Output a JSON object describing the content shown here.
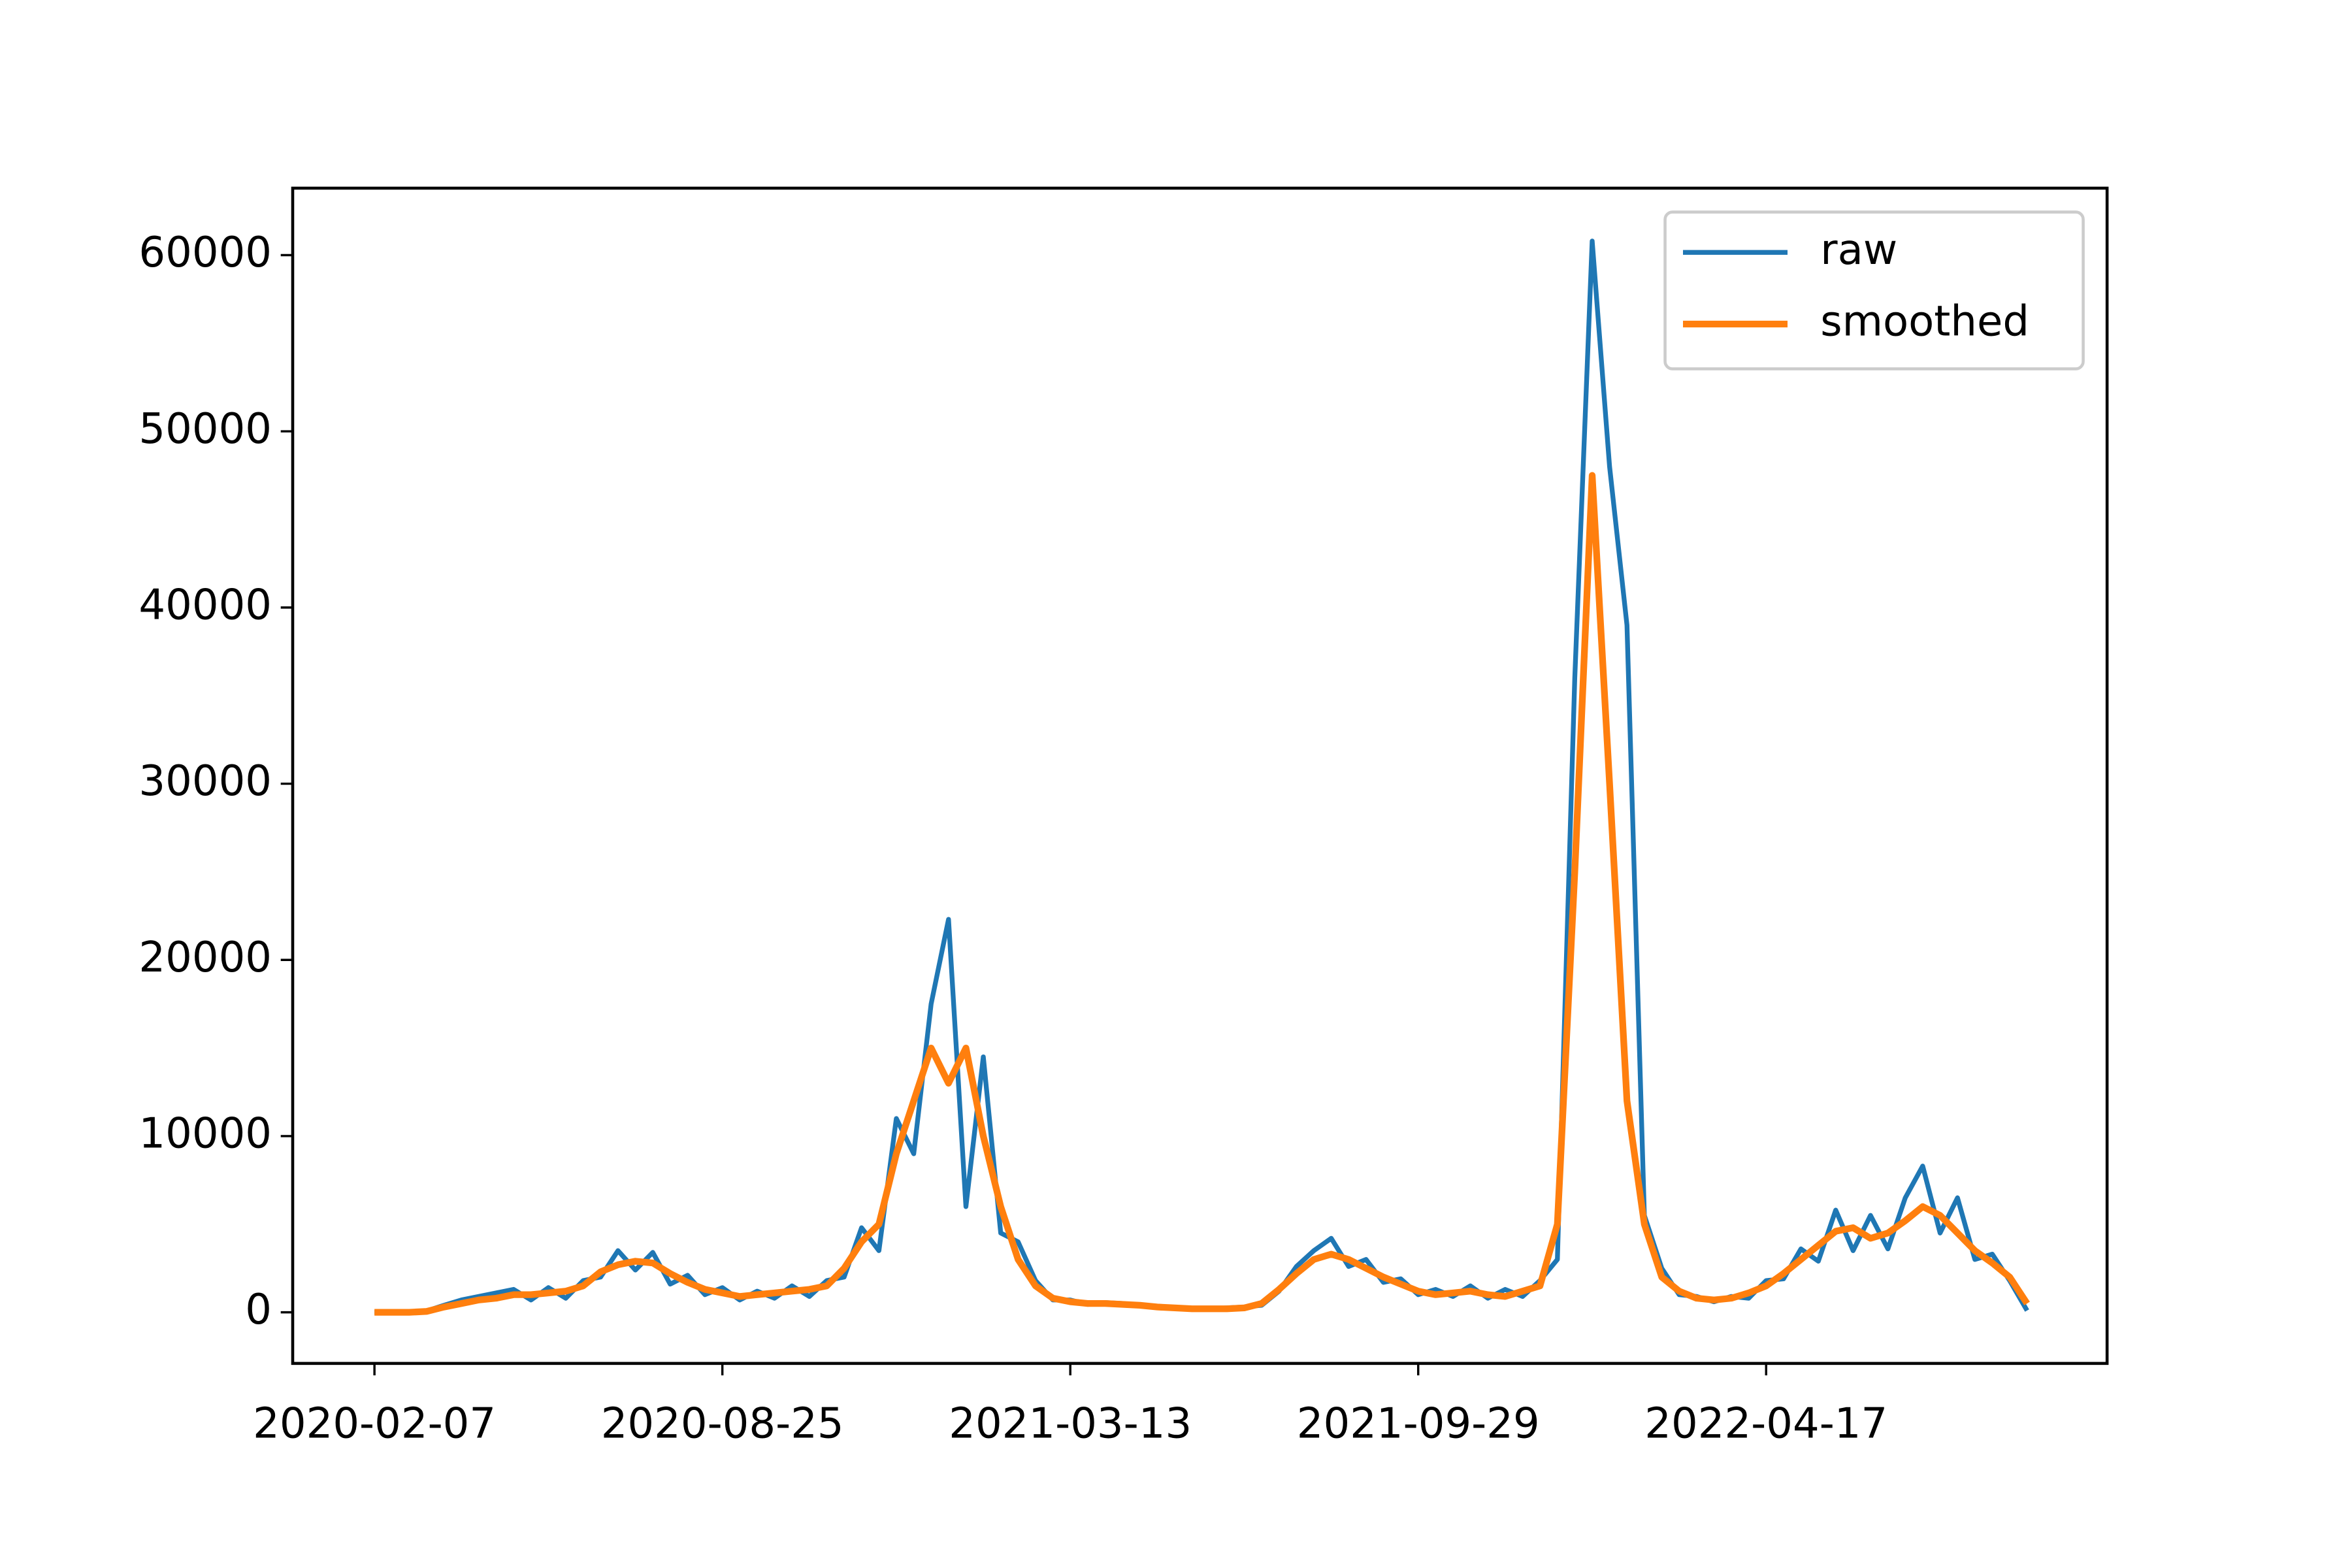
{
  "chart_data": {
    "type": "line",
    "x": [
      "2020-02-07",
      "2020-02-17",
      "2020-02-27",
      "2020-03-08",
      "2020-03-18",
      "2020-03-28",
      "2020-04-07",
      "2020-04-17",
      "2020-04-27",
      "2020-05-07",
      "2020-05-17",
      "2020-05-27",
      "2020-06-06",
      "2020-06-16",
      "2020-06-26",
      "2020-07-06",
      "2020-07-16",
      "2020-07-26",
      "2020-08-05",
      "2020-08-15",
      "2020-08-25",
      "2020-09-04",
      "2020-09-14",
      "2020-09-24",
      "2020-10-04",
      "2020-10-14",
      "2020-10-24",
      "2020-11-03",
      "2020-11-13",
      "2020-11-23",
      "2020-12-03",
      "2020-12-13",
      "2020-12-23",
      "2021-01-02",
      "2021-01-12",
      "2021-01-22",
      "2021-02-01",
      "2021-02-11",
      "2021-02-21",
      "2021-03-03",
      "2021-03-13",
      "2021-03-23",
      "2021-04-02",
      "2021-04-12",
      "2021-04-22",
      "2021-05-02",
      "2021-05-12",
      "2021-05-22",
      "2021-06-01",
      "2021-06-11",
      "2021-06-21",
      "2021-07-01",
      "2021-07-11",
      "2021-07-21",
      "2021-07-31",
      "2021-08-10",
      "2021-08-20",
      "2021-08-30",
      "2021-09-09",
      "2021-09-19",
      "2021-09-29",
      "2021-10-09",
      "2021-10-19",
      "2021-10-29",
      "2021-11-08",
      "2021-11-18",
      "2021-11-28",
      "2021-12-08",
      "2021-12-18",
      "2021-12-28",
      "2022-01-07",
      "2022-01-17",
      "2022-01-27",
      "2022-02-06",
      "2022-02-16",
      "2022-02-26",
      "2022-03-08",
      "2022-03-18",
      "2022-03-28",
      "2022-04-07",
      "2022-04-17",
      "2022-04-27",
      "2022-05-07",
      "2022-05-17",
      "2022-05-27",
      "2022-06-06",
      "2022-06-16",
      "2022-06-26",
      "2022-07-06",
      "2022-07-16",
      "2022-07-26",
      "2022-08-05",
      "2022-08-15",
      "2022-08-25",
      "2022-09-04",
      "2022-09-14"
    ],
    "series": [
      {
        "name": "raw",
        "color": "#1f77b4",
        "values": [
          0,
          0,
          0,
          80,
          400,
          700,
          900,
          1100,
          1300,
          700,
          1400,
          800,
          1800,
          2000,
          3500,
          2400,
          3400,
          1600,
          2100,
          1000,
          1400,
          700,
          1200,
          800,
          1500,
          900,
          1800,
          2000,
          4800,
          3500,
          11000,
          9000,
          17500,
          22300,
          6000,
          14500,
          4500,
          4000,
          1800,
          700,
          700,
          450,
          550,
          500,
          400,
          300,
          250,
          200,
          200,
          250,
          300,
          400,
          1200,
          2600,
          3500,
          4200,
          2600,
          3000,
          1700,
          1900,
          1000,
          1300,
          900,
          1500,
          800,
          1300,
          900,
          1800,
          3000,
          36000,
          60800,
          48000,
          39000,
          5500,
          2500,
          1000,
          900,
          600,
          900,
          800,
          1800,
          1900,
          3600,
          2900,
          5800,
          3500,
          5500,
          3600,
          6500,
          8300,
          4500,
          6500,
          3000,
          3300,
          1800,
          100
        ]
      },
      {
        "name": "smoothed",
        "color": "#ff7f0e",
        "values": [
          0,
          0,
          0,
          50,
          300,
          500,
          700,
          800,
          1000,
          1000,
          1100,
          1200,
          1500,
          2300,
          2700,
          2900,
          2800,
          2200,
          1700,
          1300,
          1100,
          900,
          1000,
          1100,
          1200,
          1300,
          1500,
          2500,
          4000,
          5000,
          9000,
          12000,
          15000,
          13000,
          15000,
          10000,
          6000,
          3000,
          1500,
          800,
          600,
          500,
          500,
          450,
          400,
          300,
          250,
          200,
          200,
          200,
          250,
          500,
          1300,
          2200,
          3000,
          3300,
          3000,
          2500,
          2000,
          1600,
          1200,
          1000,
          1100,
          1200,
          1000,
          900,
          1200,
          1500,
          5000,
          25000,
          47500,
          30000,
          12000,
          5000,
          2000,
          1200,
          800,
          700,
          800,
          1100,
          1500,
          2200,
          3000,
          3800,
          4600,
          4800,
          4200,
          4500,
          5200,
          6000,
          5500,
          4500,
          3500,
          2800,
          2000,
          500
        ]
      }
    ],
    "xlim": [
      "2019-12-22",
      "2022-10-30"
    ],
    "xticks": [
      "2020-02-07",
      "2020-08-25",
      "2021-03-13",
      "2021-09-29",
      "2022-04-17"
    ],
    "ylim": [
      -2900,
      63800
    ],
    "yticks": [
      0,
      10000,
      20000,
      30000,
      40000,
      50000,
      60000
    ],
    "legend": "upper right"
  }
}
